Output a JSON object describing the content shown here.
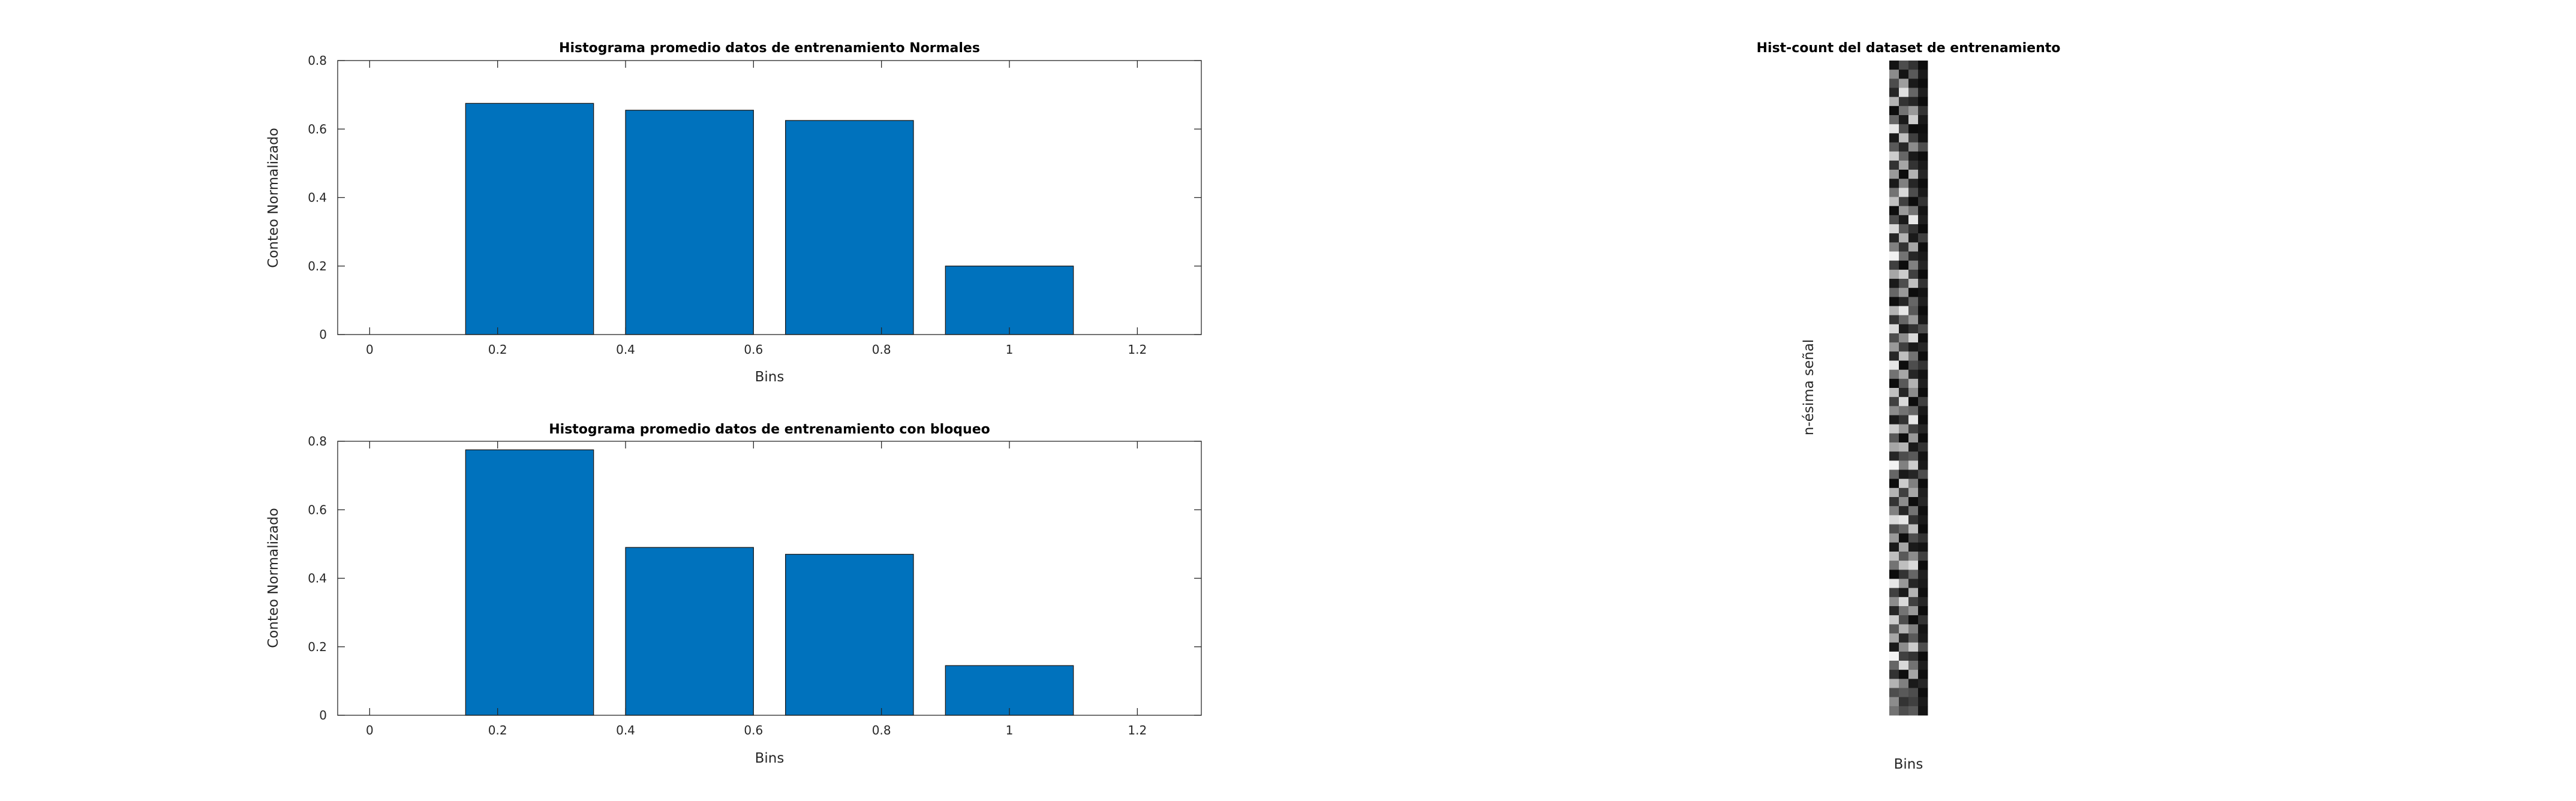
{
  "chart_data": [
    {
      "type": "bar",
      "title": "Histograma promedio datos de entrenamiento Normales",
      "xlabel": "Bins",
      "ylabel": "Conteo Normalizado",
      "x": [
        0.25,
        0.5,
        0.75,
        1.0
      ],
      "values": [
        0.675,
        0.655,
        0.625,
        0.2
      ],
      "bar_width": 0.2,
      "xlim": [
        -0.05,
        1.3
      ],
      "ylim": [
        0,
        0.8
      ],
      "xticks": [
        "0",
        "0.2",
        "0.4",
        "0.6",
        "0.8",
        "1",
        "1.2"
      ],
      "yticks": [
        "0",
        "0.2",
        "0.4",
        "0.6",
        "0.8"
      ],
      "color": "#0072BD",
      "grid": false
    },
    {
      "type": "bar",
      "title": "Histograma promedio datos de entrenamiento con bloqueo",
      "xlabel": "Bins",
      "ylabel": "Conteo Normalizado",
      "x": [
        0.25,
        0.5,
        0.75,
        1.0
      ],
      "values": [
        0.775,
        0.49,
        0.47,
        0.145
      ],
      "bar_width": 0.2,
      "xlim": [
        -0.05,
        1.3
      ],
      "ylim": [
        0,
        0.8
      ],
      "xticks": [
        "0",
        "0.2",
        "0.4",
        "0.6",
        "0.8",
        "1",
        "1.2"
      ],
      "yticks": [
        "0",
        "0.2",
        "0.4",
        "0.6",
        "0.8"
      ],
      "color": "#0072BD",
      "grid": false
    },
    {
      "type": "heatmap",
      "title": "Hist-count del dataset de entrenamiento",
      "xlabel": "Bins",
      "ylabel": "n-ésima señal",
      "colormap": "gray",
      "columns": 4,
      "rows": 72,
      "grid": false,
      "values": [
        [
          0.08,
          0.3,
          0.2,
          0.05
        ],
        [
          0.55,
          0.08,
          0.35,
          0.1
        ],
        [
          0.3,
          0.62,
          0.1,
          0.05
        ],
        [
          0.15,
          0.88,
          0.4,
          0.12
        ],
        [
          0.7,
          0.2,
          0.15,
          0.05
        ],
        [
          0.05,
          0.45,
          0.6,
          0.2
        ],
        [
          0.4,
          0.1,
          0.8,
          0.1
        ],
        [
          0.9,
          0.3,
          0.05,
          0.06
        ],
        [
          0.1,
          0.75,
          0.25,
          0.08
        ],
        [
          0.35,
          0.15,
          0.55,
          0.3
        ],
        [
          0.8,
          0.4,
          0.1,
          0.05
        ],
        [
          0.2,
          0.65,
          0.2,
          0.1
        ],
        [
          0.6,
          0.05,
          0.7,
          0.15
        ],
        [
          0.1,
          0.5,
          0.15,
          0.05
        ],
        [
          0.45,
          0.85,
          0.3,
          0.1
        ],
        [
          0.75,
          0.25,
          0.05,
          0.2
        ],
        [
          0.05,
          0.6,
          0.45,
          0.08
        ],
        [
          0.3,
          0.1,
          0.9,
          0.12
        ],
        [
          0.85,
          0.35,
          0.2,
          0.05
        ],
        [
          0.15,
          0.7,
          0.1,
          0.25
        ],
        [
          0.5,
          0.2,
          0.65,
          0.06
        ],
        [
          0.95,
          0.45,
          0.15,
          0.1
        ],
        [
          0.25,
          0.05,
          0.5,
          0.15
        ],
        [
          0.65,
          0.8,
          0.25,
          0.05
        ],
        [
          0.1,
          0.3,
          0.75,
          0.2
        ],
        [
          0.4,
          0.6,
          0.05,
          0.08
        ],
        [
          0.05,
          0.15,
          0.4,
          0.12
        ],
        [
          0.7,
          0.9,
          0.35,
          0.05
        ],
        [
          0.2,
          0.4,
          0.6,
          0.1
        ],
        [
          0.85,
          0.1,
          0.2,
          0.3
        ],
        [
          0.3,
          0.55,
          0.85,
          0.06
        ],
        [
          0.6,
          0.25,
          0.1,
          0.15
        ],
        [
          0.15,
          0.75,
          0.45,
          0.05
        ],
        [
          0.9,
          0.05,
          0.3,
          0.2
        ],
        [
          0.45,
          0.65,
          0.15,
          0.08
        ],
        [
          0.05,
          0.35,
          0.7,
          0.12
        ],
        [
          0.75,
          0.15,
          0.55,
          0.05
        ],
        [
          0.25,
          0.85,
          0.05,
          0.25
        ],
        [
          0.55,
          0.45,
          0.4,
          0.1
        ],
        [
          0.1,
          0.2,
          0.9,
          0.06
        ],
        [
          0.8,
          0.6,
          0.25,
          0.15
        ],
        [
          0.35,
          0.05,
          0.6,
          0.05
        ],
        [
          0.65,
          0.7,
          0.1,
          0.2
        ],
        [
          0.15,
          0.3,
          0.35,
          0.08
        ],
        [
          0.95,
          0.5,
          0.8,
          0.1
        ],
        [
          0.4,
          0.1,
          0.15,
          0.3
        ],
        [
          0.05,
          0.8,
          0.5,
          0.05
        ],
        [
          0.7,
          0.25,
          0.65,
          0.12
        ],
        [
          0.2,
          0.55,
          0.05,
          0.15
        ],
        [
          0.5,
          0.15,
          0.45,
          0.06
        ],
        [
          0.85,
          0.9,
          0.2,
          0.1
        ],
        [
          0.3,
          0.4,
          0.75,
          0.05
        ],
        [
          0.6,
          0.05,
          0.3,
          0.2
        ],
        [
          0.1,
          0.65,
          0.1,
          0.08
        ],
        [
          0.75,
          0.35,
          0.55,
          0.25
        ],
        [
          0.45,
          0.75,
          0.85,
          0.05
        ],
        [
          0.05,
          0.2,
          0.4,
          0.12
        ],
        [
          0.9,
          0.6,
          0.15,
          0.1
        ],
        [
          0.25,
          0.1,
          0.7,
          0.06
        ],
        [
          0.55,
          0.85,
          0.25,
          0.15
        ],
        [
          0.15,
          0.45,
          0.6,
          0.05
        ],
        [
          0.8,
          0.3,
          0.05,
          0.2
        ],
        [
          0.35,
          0.7,
          0.5,
          0.08
        ],
        [
          0.65,
          0.15,
          0.35,
          0.1
        ],
        [
          0.1,
          0.55,
          0.8,
          0.3
        ],
        [
          0.95,
          0.25,
          0.2,
          0.05
        ],
        [
          0.4,
          0.85,
          0.45,
          0.12
        ],
        [
          0.2,
          0.05,
          0.65,
          0.06
        ],
        [
          0.7,
          0.5,
          0.1,
          0.15
        ],
        [
          0.3,
          0.35,
          0.3,
          0.05
        ],
        [
          0.55,
          0.2,
          0.25,
          0.1
        ],
        [
          0.45,
          0.3,
          0.35,
          0.08
        ]
      ]
    }
  ]
}
